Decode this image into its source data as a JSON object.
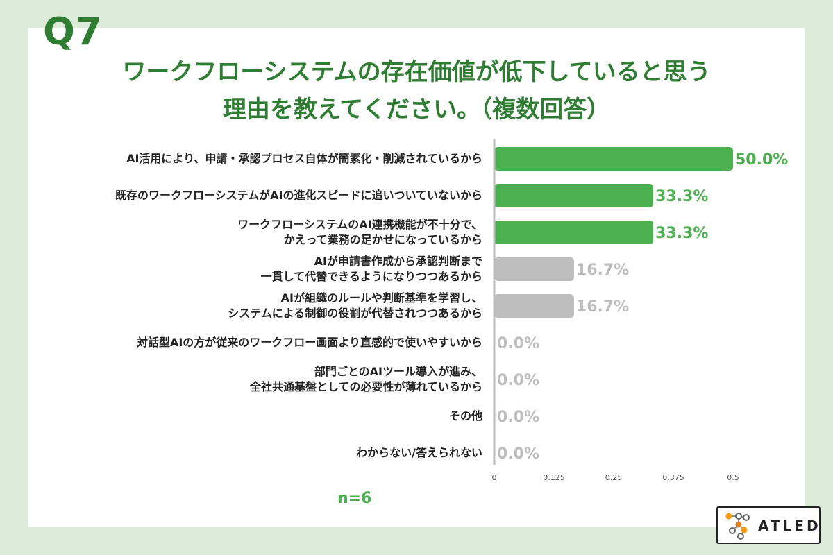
{
  "question_label": "Q7",
  "title_line1": "ワークフローシステムの存在価値が低下していると思う",
  "title_line2": "理由を教えてください。（複数回答）",
  "sample_size": "n=6",
  "logo": {
    "text": "ATLED",
    "icon": "molecule-logo-icon"
  },
  "colors": {
    "highlight": "#4caf50",
    "muted": "#bdbdbd",
    "title": "#2e7d32"
  },
  "chart_data": {
    "type": "bar",
    "orientation": "horizontal",
    "categories": [
      [
        "AI活用により、申請・承認プロセス自体が簡素化・削減されているから"
      ],
      [
        "既存のワークフローシステムがAIの進化スピードに追いついていないから"
      ],
      [
        "ワークフローシステムのAI連携機能が不十分で、",
        "かえって業務の足かせになっているから"
      ],
      [
        "AIが申請書作成から承認判断まで",
        "一貫して代替できるようになりつつあるから"
      ],
      [
        "AIが組織のルールや判断基準を学習し、",
        "システムによる制御の役割が代替されつつあるから"
      ],
      [
        "対話型AIの方が従来のワークフロー画面より直感的で使いやすいから"
      ],
      [
        "部門ごとのAIツール導入が進み、",
        "全社共通基盤としての必要性が薄れているから"
      ],
      [
        "その他"
      ],
      [
        "わからない/答えられない"
      ]
    ],
    "values": [
      0.5,
      0.333,
      0.333,
      0.167,
      0.167,
      0,
      0,
      0,
      0
    ],
    "value_labels": [
      "50.0%",
      "33.3%",
      "33.3%",
      "16.7%",
      "16.7%",
      "0.0%",
      "0.0%",
      "0.0%",
      "0.0%"
    ],
    "highlighted": [
      true,
      true,
      true,
      false,
      false,
      false,
      false,
      false,
      false
    ],
    "xlim": [
      0,
      0.5
    ],
    "xticks": [
      0,
      0.125,
      0.25,
      0.375,
      0.5
    ],
    "xtick_labels": [
      "0",
      "0.125",
      "0.25",
      "0.375",
      "0.5"
    ]
  }
}
